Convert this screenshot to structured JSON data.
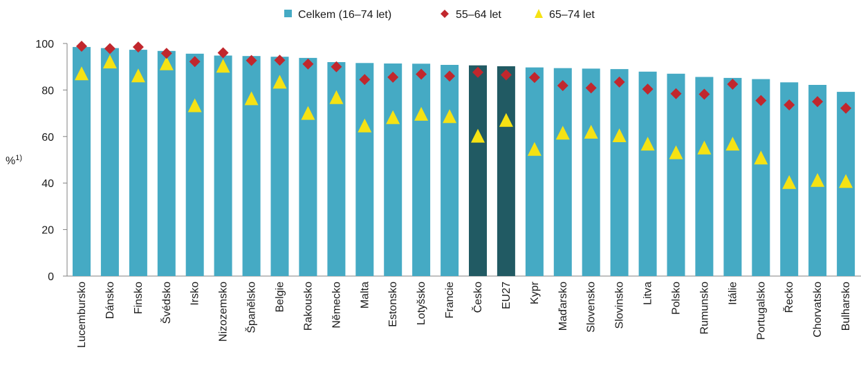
{
  "chart_data": {
    "type": "bar",
    "ylabel": "%",
    "ylabel_sup": "1)",
    "ylim": [
      0,
      100
    ],
    "yticks": [
      0,
      20,
      40,
      60,
      80,
      100
    ],
    "grid": false,
    "legend_position": "top-center",
    "categories": [
      "Lucembursko",
      "Dánsko",
      "Finsko",
      "Švédsko",
      "Irsko",
      "Nizozemsko",
      "Španělsko",
      "Belgie",
      "Rakousko",
      "Německo",
      "Malta",
      "Estonsko",
      "Lotyšsko",
      "Francie",
      "Česko",
      "EU27",
      "Kypr",
      "Maďarsko",
      "Slovensko",
      "Slovinsko",
      "Litva",
      "Polsko",
      "Rumunsko",
      "Itálie",
      "Portugalsko",
      "Řecko",
      "Chorvatsko",
      "Bulharsko"
    ],
    "highlight_categories": [
      "Česko",
      "EU27"
    ],
    "series": [
      {
        "name": "Celkem (16–74 let)",
        "kind": "bar",
        "color": "#45aac4",
        "highlight_color": "#215a63",
        "values": [
          98.5,
          98.0,
          97.3,
          96.8,
          95.6,
          94.8,
          94.6,
          94.3,
          93.8,
          92.0,
          91.6,
          91.4,
          91.3,
          90.8,
          90.6,
          90.2,
          89.7,
          89.4,
          89.2,
          89.0,
          87.9,
          87.0,
          85.6,
          85.2,
          84.7,
          83.3,
          82.2,
          79.2
        ]
      },
      {
        "name": "55–64 let",
        "kind": "diamond",
        "color": "#c1272d",
        "values": [
          98.8,
          97.8,
          98.5,
          95.8,
          92.2,
          96.0,
          92.7,
          92.8,
          91.2,
          90.0,
          84.5,
          85.5,
          86.8,
          86.0,
          87.6,
          86.5,
          85.4,
          81.9,
          80.9,
          83.4,
          80.4,
          78.4,
          78.2,
          82.5,
          75.5,
          73.6,
          75.0,
          72.2
        ]
      },
      {
        "name": "65–74 let",
        "kind": "triangle",
        "color": "#f5e214",
        "values": [
          87.0,
          92.1,
          86.1,
          91.3,
          73.3,
          90.3,
          76.3,
          83.4,
          70.0,
          76.8,
          64.6,
          68.2,
          69.6,
          68.6,
          60.2,
          67.0,
          54.5,
          61.5,
          61.9,
          60.4,
          56.8,
          53.1,
          55.1,
          56.8,
          50.8,
          40.3,
          41.2,
          40.7
        ]
      }
    ]
  }
}
